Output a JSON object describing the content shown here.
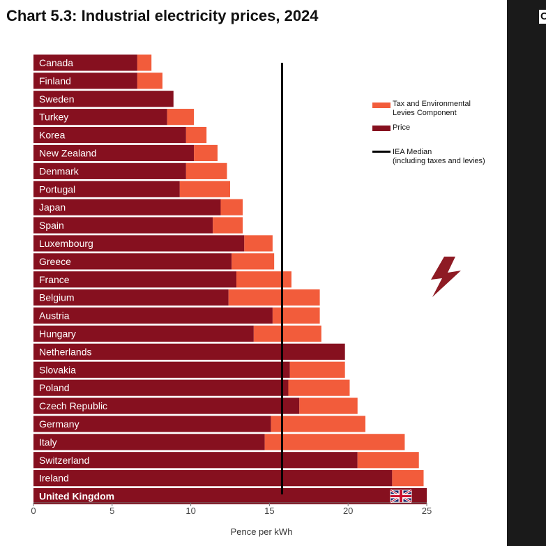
{
  "title": "Chart 5.3: Industrial electricity prices, 2024",
  "next_panel_label": "C",
  "colors": {
    "price": "#86101F",
    "tax": "#F25C3B",
    "median": "#000000",
    "bolt": "#8E1B24"
  },
  "legend": {
    "tax_label": "Tax and Environmental\nLevies Component",
    "price_label": "Price",
    "median_label": "IEA Median\n(including taxes and levies)"
  },
  "chart_data": {
    "type": "bar",
    "orientation": "horizontal",
    "stacked": true,
    "title": "Chart 5.3: Industrial electricity prices, 2024",
    "xlabel": "Pence per kWh",
    "ylabel": "",
    "xlim": [
      0,
      25
    ],
    "x_ticks": [
      "0",
      "5",
      "10",
      "15",
      "20",
      "25"
    ],
    "categories": [
      "Canada",
      "Finland",
      "Sweden",
      "Turkey",
      "Korea",
      "New Zealand",
      "Denmark",
      "Portugal",
      "Japan",
      "Spain",
      "Luxembourg",
      "Greece",
      "France",
      "Belgium",
      "Austria",
      "Hungary",
      "Netherlands",
      "Slovakia",
      "Poland",
      "Czech Republic",
      "Germany",
      "Italy",
      "Switzerland",
      "Ireland",
      "United Kingdom"
    ],
    "highlight_category": "United Kingdom",
    "series": [
      {
        "name": "Price",
        "values": [
          6.6,
          6.6,
          8.9,
          8.5,
          9.7,
          10.2,
          9.7,
          9.3,
          11.9,
          11.4,
          13.4,
          12.6,
          12.9,
          12.4,
          15.2,
          14.0,
          19.8,
          16.3,
          16.2,
          16.9,
          15.1,
          14.7,
          20.6,
          22.8,
          25.0
        ]
      },
      {
        "name": "Tax and Environmental Levies Component",
        "values": [
          0.9,
          1.6,
          0.0,
          1.7,
          1.3,
          1.5,
          2.6,
          3.2,
          1.4,
          1.9,
          1.8,
          2.7,
          3.5,
          5.8,
          3.0,
          4.3,
          0.0,
          3.5,
          3.9,
          3.7,
          6.0,
          8.9,
          3.9,
          2.0,
          0.0
        ]
      }
    ],
    "reference_lines": [
      {
        "name": "IEA Median (including taxes and levies)",
        "value": 15.8
      }
    ]
  }
}
